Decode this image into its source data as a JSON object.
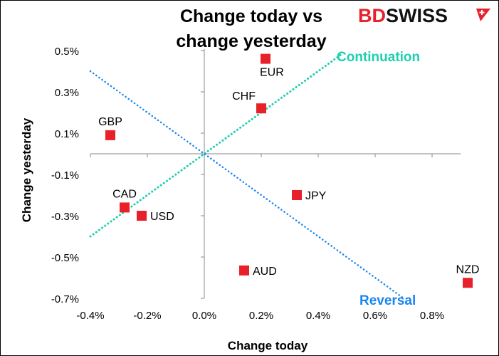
{
  "logo": {
    "text_red": "BD",
    "text_black": "SWISS",
    "colors": {
      "red": "#e8202a",
      "black": "#111111"
    }
  },
  "chart_data": {
    "type": "scatter",
    "title_lines": [
      "Change today vs",
      "change yesterday"
    ],
    "xlabel": "Change today",
    "ylabel": "Change yesterday",
    "xlim": [
      -0.4,
      0.9
    ],
    "ylim": [
      -0.7,
      0.5
    ],
    "xticks": [
      -0.4,
      -0.2,
      0.0,
      0.2,
      0.4,
      0.6,
      0.8
    ],
    "xtick_labels": [
      "-0.4%",
      "-0.2%",
      "0.0%",
      "0.2%",
      "0.4%",
      "0.6%",
      "0.8%"
    ],
    "yticks": [
      0.5,
      0.3,
      0.1,
      -0.1,
      -0.3,
      -0.5,
      -0.7
    ],
    "ytick_labels": [
      "0.5%",
      "0.3%",
      "0.1%",
      "-0.1%",
      "-0.3%",
      "-0.5%",
      "-0.7%"
    ],
    "grid": false,
    "marker_color": "#e8202a",
    "points": [
      {
        "label": "EUR",
        "x": 0.215,
        "y": 0.46,
        "label_pos": "below"
      },
      {
        "label": "CHF",
        "x": 0.2,
        "y": 0.22,
        "label_pos": "above-left"
      },
      {
        "label": "GBP",
        "x": -0.33,
        "y": 0.09,
        "label_pos": "above"
      },
      {
        "label": "CAD",
        "x": -0.28,
        "y": -0.26,
        "label_pos": "above"
      },
      {
        "label": "USD",
        "x": -0.22,
        "y": -0.3,
        "label_pos": "right"
      },
      {
        "label": "JPY",
        "x": 0.325,
        "y": -0.2,
        "label_pos": "right"
      },
      {
        "label": "AUD",
        "x": 0.14,
        "y": -0.565,
        "label_pos": "right"
      },
      {
        "label": "NZD",
        "x": 0.925,
        "y": -0.625,
        "label_pos": "above"
      }
    ],
    "reference_lines": [
      {
        "name": "Continuation",
        "color": "#1fcfb0",
        "from": [
          -0.4,
          -0.4
        ],
        "to": [
          0.48,
          0.48
        ]
      },
      {
        "name": "Reversal",
        "color": "#1a85f0",
        "from": [
          -0.4,
          0.4
        ],
        "to": [
          0.7,
          -0.7
        ]
      }
    ]
  }
}
